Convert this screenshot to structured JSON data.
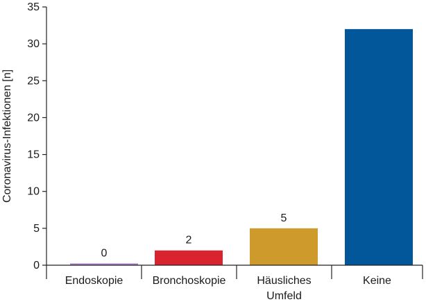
{
  "chart_data": {
    "type": "bar",
    "title": "",
    "xlabel": "",
    "ylabel": "Coronavirus-Infektionen [n]",
    "ylim": [
      0,
      35
    ],
    "yticks": [
      "0",
      "5",
      "10",
      "15",
      "20",
      "25",
      "30",
      "35"
    ],
    "categories": [
      [
        "Endoskopie"
      ],
      [
        "Bronchoskopie"
      ],
      [
        "Häusliches",
        "Umfeld"
      ],
      [
        "Keine"
      ]
    ],
    "values": [
      0,
      2,
      5,
      32
    ],
    "data_labels": [
      "0",
      "2",
      "5",
      ""
    ],
    "colors": [
      "#b07cc6",
      "#d9232e",
      "#cf9a2c",
      "#02569a"
    ],
    "grid": false
  }
}
